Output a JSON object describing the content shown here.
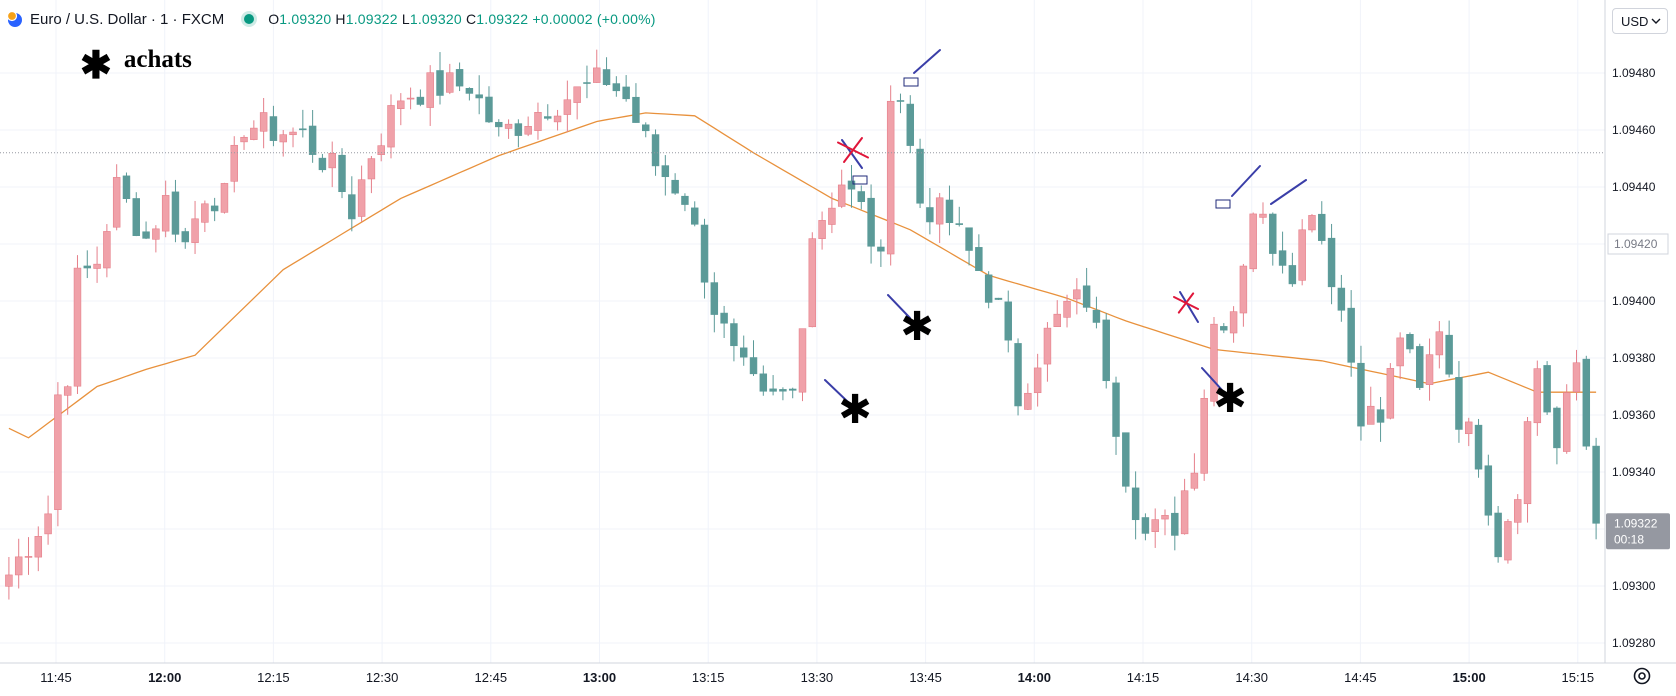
{
  "header": {
    "symbol": "Euro / U.S. Dollar · 1 · FXCM",
    "open_label": "O",
    "open": "1.09320",
    "high_label": "H",
    "high": "1.09322",
    "low_label": "L",
    "low": "1.09320",
    "close_label": "C",
    "close": "1.09322",
    "change": "+0.00002 (+0.00%)"
  },
  "currency_button": {
    "label": "USD"
  },
  "annotation_legend": {
    "symbol": "✱",
    "text": "achats"
  },
  "colors": {
    "up": "#f0a1a9",
    "up_border": "#e57f8a",
    "down": "#5b9a98",
    "ma": "#e8913c",
    "grid": "#f0f3fa",
    "arrow": "#3a3ea8",
    "cross": "#e0163a"
  },
  "chart_data": {
    "type": "candlestick",
    "title": "Euro / U.S. Dollar · 1 · FXCM",
    "xlabel": "",
    "ylabel": "",
    "ylim": [
      1.0928,
      1.0949
    ],
    "y_ticks": [
      "1.09480",
      "1.09460",
      "1.09440",
      "1.09420",
      "1.09400",
      "1.09380",
      "1.09360",
      "1.09340",
      "1.09320",
      "1.09300",
      "1.09280"
    ],
    "x_ticks": [
      "11:45",
      "12:00",
      "12:15",
      "12:30",
      "12:45",
      "13:00",
      "13:15",
      "13:30",
      "13:45",
      "14:00",
      "14:15",
      "14:30",
      "14:45",
      "15:00",
      "15:15"
    ],
    "x_ticks_bold": [
      "12:00",
      "13:00",
      "14:00",
      "15:00"
    ],
    "highlight_price_label": "1.09420",
    "last_price_label": "1.09322",
    "countdown": "00:18",
    "dotted_line_price": 1.09452,
    "annotation_marks": [
      "✱",
      "✱",
      "✱"
    ],
    "series": [
      {
        "name": "",
        "type": "moving-average",
        "anchors": [
          [
            -1,
            1.09357
          ],
          [
            2,
            1.09352
          ],
          [
            9,
            1.0937
          ],
          [
            14,
            1.09376
          ],
          [
            19,
            1.09381
          ],
          [
            28,
            1.09411
          ],
          [
            40,
            1.09436
          ],
          [
            50,
            1.09451
          ],
          [
            60,
            1.09463
          ],
          [
            65,
            1.09466
          ],
          [
            70,
            1.09465
          ],
          [
            76,
            1.09452
          ],
          [
            84,
            1.09436
          ],
          [
            92,
            1.09425
          ],
          [
            100,
            1.09409
          ],
          [
            108,
            1.09401
          ],
          [
            114,
            1.09393
          ],
          [
            123,
            1.09383
          ],
          [
            134,
            1.09379
          ],
          [
            145,
            1.09371
          ],
          [
            151,
            1.09375
          ],
          [
            156,
            1.09368
          ]
        ]
      },
      {
        "name": "",
        "type": "price",
        "anchors": [
          [
            0,
            1.09304
          ],
          [
            4,
            1.09326
          ],
          [
            5,
            1.09367
          ],
          [
            6,
            1.09375
          ],
          [
            7,
            1.09407
          ],
          [
            9,
            1.09414
          ],
          [
            11,
            1.0944
          ],
          [
            14,
            1.09422
          ],
          [
            16,
            1.09435
          ],
          [
            18,
            1.0942
          ],
          [
            20,
            1.09438
          ],
          [
            22,
            1.09436
          ],
          [
            24,
            1.09462
          ],
          [
            27,
            1.0946
          ],
          [
            30,
            1.09458
          ],
          [
            33,
            1.09446
          ],
          [
            35,
            1.09432
          ],
          [
            37,
            1.09452
          ],
          [
            40,
            1.09472
          ],
          [
            43,
            1.09475
          ],
          [
            47,
            1.09476
          ],
          [
            50,
            1.09458
          ],
          [
            55,
            1.09469
          ],
          [
            58,
            1.09473
          ],
          [
            61,
            1.09478
          ],
          [
            63,
            1.09471
          ],
          [
            66,
            1.09448
          ],
          [
            69,
            1.09437
          ],
          [
            72,
            1.09398
          ],
          [
            74,
            1.0938
          ],
          [
            77,
            1.09364
          ],
          [
            80,
            1.09368
          ],
          [
            82,
            1.09424
          ],
          [
            85,
            1.09442
          ],
          [
            87,
            1.09432
          ],
          [
            89,
            1.09412
          ],
          [
            90,
            1.09476
          ],
          [
            91,
            1.09472
          ],
          [
            93,
            1.09435
          ],
          [
            96,
            1.09428
          ],
          [
            99,
            1.09411
          ],
          [
            101,
            1.09397
          ],
          [
            103,
            1.09366
          ],
          [
            106,
            1.09388
          ],
          [
            108,
            1.09398
          ],
          [
            110,
            1.09401
          ],
          [
            112,
            1.09376
          ],
          [
            114,
            1.0934
          ],
          [
            116,
            1.09318
          ],
          [
            119,
            1.09322
          ],
          [
            121,
            1.09345
          ],
          [
            123,
            1.09392
          ],
          [
            125,
            1.09398
          ],
          [
            127,
            1.09433
          ],
          [
            129,
            1.09421
          ],
          [
            131,
            1.09412
          ],
          [
            133,
            1.09435
          ],
          [
            136,
            1.09397
          ],
          [
            138,
            1.09362
          ],
          [
            140,
            1.09358
          ],
          [
            142,
            1.09389
          ],
          [
            144,
            1.09367
          ],
          [
            146,
            1.09392
          ],
          [
            148,
            1.0936
          ],
          [
            150,
            1.09346
          ],
          [
            152,
            1.09314
          ],
          [
            154,
            1.09336
          ],
          [
            156,
            1.09377
          ],
          [
            158,
            1.09348
          ],
          [
            160,
            1.09378
          ],
          [
            162,
            1.09322
          ]
        ]
      }
    ]
  }
}
